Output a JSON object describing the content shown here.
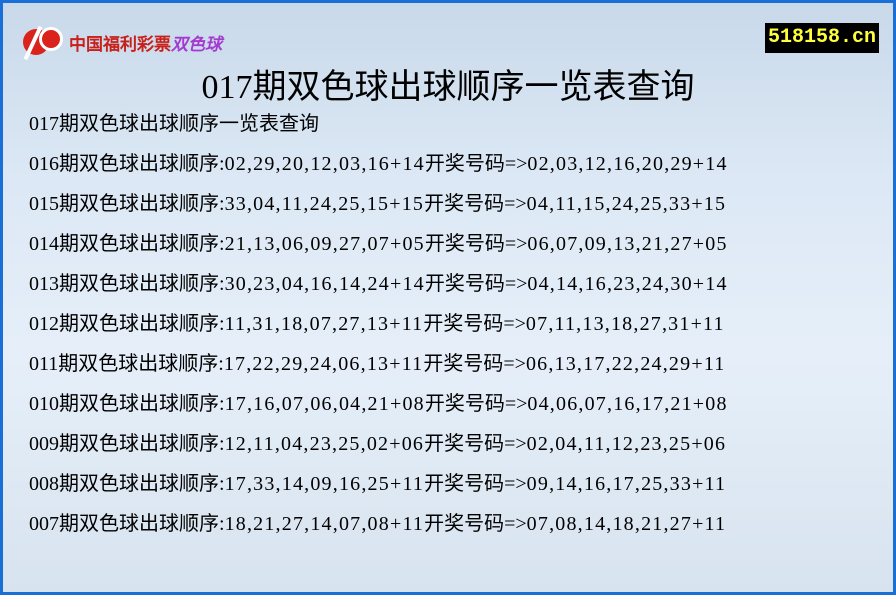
{
  "logo": {
    "text": "中国福利彩票",
    "text_accent": "双色球"
  },
  "site": "518158.cn",
  "title": "017期双色球出球顺序一览表查询",
  "subtitle": "017期双色球出球顺序一览表查询",
  "labels": {
    "order": "期双色球出球顺序:",
    "draw": "开奖号码=>"
  },
  "rows": [
    {
      "period": "016",
      "order": "02,29,20,12,03,16+14",
      "draw": "02,03,12,16,20,29+14"
    },
    {
      "period": "015",
      "order": "33,04,11,24,25,15+15",
      "draw": "04,11,15,24,25,33+15"
    },
    {
      "period": "014",
      "order": "21,13,06,09,27,07+05",
      "draw": "06,07,09,13,21,27+05"
    },
    {
      "period": "013",
      "order": "30,23,04,16,14,24+14",
      "draw": "04,14,16,23,24,30+14"
    },
    {
      "period": "012",
      "order": "11,31,18,07,27,13+11",
      "draw": "07,11,13,18,27,31+11"
    },
    {
      "period": "011",
      "order": "17,22,29,24,06,13+11",
      "draw": "06,13,17,22,24,29+11"
    },
    {
      "period": "010",
      "order": "17,16,07,06,04,21+08",
      "draw": "04,06,07,16,17,21+08"
    },
    {
      "period": "009",
      "order": "12,11,04,23,25,02+06",
      "draw": "02,04,11,12,23,25+06"
    },
    {
      "period": "008",
      "order": "17,33,14,09,16,25+11",
      "draw": "09,14,16,17,25,33+11"
    },
    {
      "period": "007",
      "order": "18,21,27,14,07,08+11",
      "draw": "07,08,14,18,21,27+11"
    }
  ]
}
